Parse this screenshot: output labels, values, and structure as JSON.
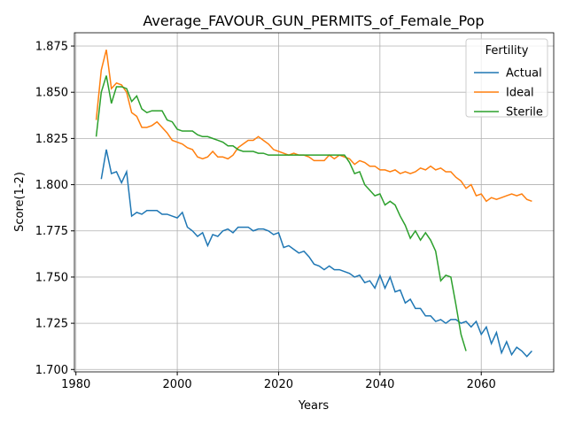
{
  "chart_data": {
    "type": "line",
    "title": "Average_FAVOUR_GUN_PERMITS_of_Female_Pop",
    "xlabel": "Years",
    "ylabel": "Score(1-2)",
    "x": [
      1984,
      1985,
      1986,
      1987,
      1988,
      1989,
      1990,
      1991,
      1992,
      1993,
      1994,
      1995,
      1996,
      1997,
      1998,
      1999,
      2000,
      2001,
      2002,
      2003,
      2004,
      2005,
      2006,
      2007,
      2008,
      2009,
      2010,
      2011,
      2012,
      2013,
      2014,
      2015,
      2016,
      2017,
      2018,
      2019,
      2020,
      2021,
      2022,
      2023,
      2024,
      2025,
      2026,
      2027,
      2028,
      2029,
      2030,
      2031,
      2032,
      2033,
      2034,
      2035,
      2036,
      2037,
      2038,
      2039,
      2040,
      2041,
      2042,
      2043,
      2044,
      2045,
      2046,
      2047,
      2048,
      2049,
      2050,
      2051,
      2052,
      2053,
      2054,
      2055,
      2056,
      2057,
      2058,
      2059,
      2060,
      2061,
      2062,
      2063,
      2064,
      2065,
      2066,
      2067,
      2068,
      2069,
      2070
    ],
    "series": [
      {
        "name": "Actual",
        "color": "#1f77b4",
        "values": [
          null,
          1.803,
          1.819,
          1.806,
          1.807,
          1.801,
          1.807,
          1.783,
          1.785,
          1.784,
          1.786,
          1.786,
          1.786,
          1.784,
          1.784,
          1.783,
          1.782,
          1.785,
          1.777,
          1.775,
          1.772,
          1.774,
          1.767,
          1.773,
          1.772,
          1.775,
          1.776,
          1.774,
          1.777,
          1.777,
          1.777,
          1.775,
          1.776,
          1.776,
          1.775,
          1.773,
          1.774,
          1.766,
          1.767,
          1.765,
          1.763,
          1.764,
          1.761,
          1.757,
          1.756,
          1.754,
          1.756,
          1.754,
          1.754,
          1.753,
          1.752,
          1.75,
          1.751,
          1.747,
          1.748,
          1.744,
          1.751,
          1.744,
          1.75,
          1.742,
          1.743,
          1.736,
          1.738,
          1.733,
          1.733,
          1.729,
          1.729,
          1.726,
          1.727,
          1.725,
          1.727,
          1.727,
          1.725,
          1.726,
          1.723,
          1.726,
          1.719,
          1.723,
          1.714,
          1.72,
          1.709,
          1.715,
          1.708,
          1.712,
          1.71,
          1.707,
          1.71
        ]
      },
      {
        "name": "Ideal",
        "color": "#ff7f0e",
        "values": [
          1.835,
          1.862,
          1.873,
          1.852,
          1.855,
          1.854,
          1.85,
          1.839,
          1.837,
          1.831,
          1.831,
          1.832,
          1.834,
          1.831,
          1.828,
          1.824,
          1.823,
          1.822,
          1.82,
          1.819,
          1.815,
          1.814,
          1.815,
          1.818,
          1.815,
          1.815,
          1.814,
          1.816,
          1.82,
          1.822,
          1.824,
          1.824,
          1.826,
          1.824,
          1.822,
          1.819,
          1.818,
          1.817,
          1.816,
          1.817,
          1.816,
          1.816,
          1.815,
          1.813,
          1.813,
          1.813,
          1.816,
          1.814,
          1.816,
          1.815,
          1.814,
          1.811,
          1.813,
          1.812,
          1.81,
          1.81,
          1.808,
          1.808,
          1.807,
          1.808,
          1.806,
          1.807,
          1.806,
          1.807,
          1.809,
          1.808,
          1.81,
          1.808,
          1.809,
          1.807,
          1.807,
          1.804,
          1.802,
          1.798,
          1.8,
          1.794,
          1.795,
          1.791,
          1.793,
          1.792,
          1.793,
          1.794,
          1.795,
          1.794,
          1.795,
          1.792,
          1.791
        ]
      },
      {
        "name": "Sterile",
        "color": "#2ca02c",
        "values": [
          1.826,
          1.85,
          1.859,
          1.844,
          1.853,
          1.853,
          1.852,
          1.845,
          1.848,
          1.841,
          1.839,
          1.84,
          1.84,
          1.84,
          1.835,
          1.834,
          1.83,
          1.829,
          1.829,
          1.829,
          1.827,
          1.826,
          1.826,
          1.825,
          1.824,
          1.823,
          1.821,
          1.821,
          1.819,
          1.818,
          1.818,
          1.818,
          1.817,
          1.817,
          1.816,
          1.816,
          1.816,
          1.816,
          1.816,
          1.816,
          1.816,
          1.816,
          1.816,
          1.816,
          1.816,
          1.816,
          1.816,
          1.816,
          1.816,
          1.816,
          1.812,
          1.806,
          1.807,
          1.8,
          1.797,
          1.794,
          1.795,
          1.789,
          1.791,
          1.789,
          1.783,
          1.778,
          1.771,
          1.775,
          1.77,
          1.774,
          1.77,
          1.764,
          1.748,
          1.751,
          1.75,
          1.735,
          1.719,
          1.71,
          null,
          null,
          null,
          null,
          null,
          null,
          null,
          null,
          null,
          null,
          null,
          null,
          null
        ]
      }
    ],
    "xlim": [
      1979.7,
      2074.3
    ],
    "xticks": [
      1980,
      2000,
      2020,
      2040,
      2060
    ],
    "ylim": [
      1.6987,
      1.8822
    ],
    "yticks": [
      {
        "value": 1.7,
        "label": "1.700"
      },
      {
        "value": 1.725,
        "label": "1.725"
      },
      {
        "value": 1.75,
        "label": "1.750"
      },
      {
        "value": 1.775,
        "label": "1.775"
      },
      {
        "value": 1.8,
        "label": "1.800"
      },
      {
        "value": 1.825,
        "label": "1.825"
      },
      {
        "value": 1.85,
        "label": "1.850"
      },
      {
        "value": 1.875,
        "label": "1.875"
      }
    ],
    "grid": true,
    "legend_title": "Fertility",
    "legend": "upper right"
  }
}
